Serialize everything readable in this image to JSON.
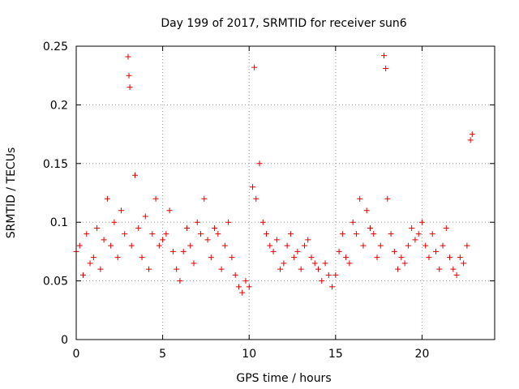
{
  "chart_data": {
    "type": "scatter",
    "title": "Day 199 of 2017, SRMTID for receiver sun6",
    "xlabel": "GPS time / hours",
    "ylabel": "SRMTID / TECUs",
    "xlim": [
      0,
      24.2
    ],
    "ylim": [
      0,
      0.25
    ],
    "xticks": [
      0,
      5,
      10,
      15,
      20
    ],
    "yticks": [
      0,
      0.05,
      0.1,
      0.15,
      0.2,
      0.25
    ],
    "xtick_labels": [
      "0",
      "5",
      "10",
      "15",
      "20"
    ],
    "ytick_labels": [
      "0",
      "0.05",
      "0.1",
      "0.15",
      "0.2",
      "0.25"
    ],
    "grid": true,
    "marker": "plus",
    "color": "#e00000",
    "series": [
      {
        "name": "SRMTID",
        "x": [
          0.0,
          0.2,
          0.4,
          0.6,
          0.8,
          1.0,
          1.2,
          1.4,
          1.6,
          1.8,
          2.0,
          2.2,
          2.4,
          2.6,
          2.8,
          3.0,
          3.05,
          3.1,
          3.2,
          3.4,
          3.6,
          3.8,
          4.0,
          4.2,
          4.4,
          4.6,
          4.8,
          5.0,
          5.2,
          5.4,
          5.6,
          5.8,
          6.0,
          6.2,
          6.4,
          6.6,
          6.8,
          7.0,
          7.2,
          7.4,
          7.6,
          7.8,
          8.0,
          8.2,
          8.4,
          8.6,
          8.8,
          9.0,
          9.2,
          9.4,
          9.6,
          9.8,
          10.0,
          10.2,
          10.3,
          10.4,
          10.6,
          10.8,
          11.0,
          11.2,
          11.4,
          11.6,
          11.8,
          12.0,
          12.2,
          12.4,
          12.6,
          12.8,
          13.0,
          13.2,
          13.4,
          13.6,
          13.8,
          14.0,
          14.2,
          14.4,
          14.6,
          14.8,
          15.0,
          15.2,
          15.4,
          15.6,
          15.8,
          16.0,
          16.2,
          16.4,
          16.6,
          16.8,
          17.0,
          17.2,
          17.4,
          17.6,
          17.8,
          17.9,
          18.0,
          18.2,
          18.4,
          18.6,
          18.8,
          19.0,
          19.2,
          19.4,
          19.6,
          19.8,
          20.0,
          20.2,
          20.4,
          20.6,
          20.8,
          21.0,
          21.2,
          21.4,
          21.6,
          21.8,
          22.0,
          22.2,
          22.4,
          22.6,
          22.8,
          22.9
        ],
        "y": [
          0.075,
          0.08,
          0.055,
          0.09,
          0.065,
          0.07,
          0.095,
          0.06,
          0.085,
          0.12,
          0.08,
          0.1,
          0.07,
          0.11,
          0.09,
          0.241,
          0.225,
          0.215,
          0.08,
          0.14,
          0.095,
          0.07,
          0.105,
          0.06,
          0.09,
          0.12,
          0.08,
          0.085,
          0.09,
          0.11,
          0.075,
          0.06,
          0.05,
          0.075,
          0.095,
          0.08,
          0.065,
          0.1,
          0.09,
          0.12,
          0.085,
          0.07,
          0.095,
          0.09,
          0.06,
          0.08,
          0.1,
          0.07,
          0.055,
          0.045,
          0.04,
          0.05,
          0.045,
          0.13,
          0.232,
          0.12,
          0.15,
          0.1,
          0.09,
          0.08,
          0.075,
          0.085,
          0.06,
          0.065,
          0.08,
          0.09,
          0.07,
          0.075,
          0.06,
          0.08,
          0.085,
          0.07,
          0.065,
          0.06,
          0.05,
          0.065,
          0.055,
          0.045,
          0.055,
          0.075,
          0.09,
          0.07,
          0.065,
          0.1,
          0.09,
          0.12,
          0.08,
          0.11,
          0.095,
          0.09,
          0.07,
          0.08,
          0.242,
          0.231,
          0.12,
          0.09,
          0.075,
          0.06,
          0.07,
          0.065,
          0.08,
          0.095,
          0.085,
          0.09,
          0.1,
          0.08,
          0.07,
          0.09,
          0.075,
          0.06,
          0.08,
          0.095,
          0.07,
          0.06,
          0.055,
          0.07,
          0.065,
          0.08,
          0.17,
          0.175
        ]
      }
    ]
  }
}
